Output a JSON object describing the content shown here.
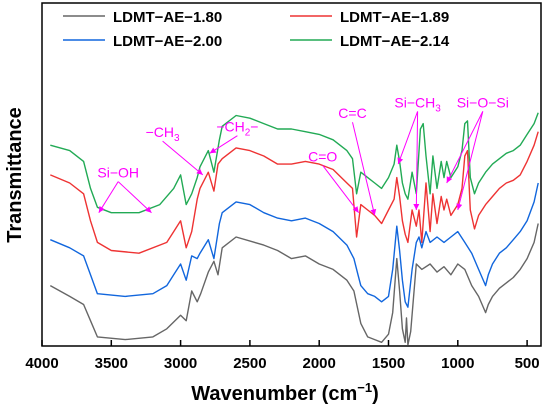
{
  "chart_data": {
    "type": "line",
    "xlabel": "Wavenumber (cm",
    "xlabel_sup": "−1",
    "xlabel_end": ")",
    "ylabel": "Transmittance",
    "xlim": [
      4000,
      400
    ],
    "x_reversed": true,
    "y_ticks_shown": false,
    "grid": false,
    "legend_placement": "top-center",
    "xticks": [
      {
        "value": 4000,
        "label": "4000"
      },
      {
        "value": 3500,
        "label": "3500"
      },
      {
        "value": 3000,
        "label": "3000"
      },
      {
        "value": 2500,
        "label": "2500"
      },
      {
        "value": 2000,
        "label": "2000"
      },
      {
        "value": 1500,
        "label": "1500"
      },
      {
        "value": 1000,
        "label": "1000"
      },
      {
        "value": 500,
        "label": "500"
      }
    ],
    "series": [
      {
        "name": "LDMT−AE−1.80",
        "color": "#666666",
        "points": [
          [
            3940,
            78
          ],
          [
            3800,
            82
          ],
          [
            3700,
            85
          ],
          [
            3650,
            91
          ],
          [
            3600,
            97
          ],
          [
            3400,
            98
          ],
          [
            3200,
            97
          ],
          [
            3100,
            94
          ],
          [
            3000,
            89
          ],
          [
            2960,
            91
          ],
          [
            2920,
            80
          ],
          [
            2880,
            84
          ],
          [
            2855,
            81
          ],
          [
            2800,
            73
          ],
          [
            2760,
            69
          ],
          [
            2730,
            74
          ],
          [
            2700,
            64
          ],
          [
            2600,
            60
          ],
          [
            2400,
            63
          ],
          [
            2300,
            65
          ],
          [
            2200,
            68
          ],
          [
            2100,
            67
          ],
          [
            2000,
            70
          ],
          [
            1900,
            72
          ],
          [
            1800,
            76
          ],
          [
            1750,
            80
          ],
          [
            1700,
            92
          ],
          [
            1650,
            97
          ],
          [
            1600,
            98
          ],
          [
            1550,
            99
          ],
          [
            1500,
            96
          ],
          [
            1470,
            88
          ],
          [
            1440,
            68
          ],
          [
            1420,
            80
          ],
          [
            1400,
            94
          ],
          [
            1380,
            99
          ],
          [
            1370,
            90
          ],
          [
            1360,
            100
          ],
          [
            1340,
            95
          ],
          [
            1300,
            70
          ],
          [
            1260,
            72
          ],
          [
            1200,
            70
          ],
          [
            1150,
            73
          ],
          [
            1100,
            71
          ],
          [
            1050,
            74
          ],
          [
            1000,
            70
          ],
          [
            950,
            72
          ],
          [
            900,
            78
          ],
          [
            850,
            82
          ],
          [
            800,
            88
          ],
          [
            780,
            85
          ],
          [
            750,
            82
          ],
          [
            700,
            79
          ],
          [
            650,
            77
          ],
          [
            600,
            75
          ],
          [
            550,
            72
          ],
          [
            500,
            68
          ],
          [
            450,
            62
          ],
          [
            420,
            55
          ]
        ]
      },
      {
        "name": "LDMT−AE−1.89",
        "color": "#ee3333",
        "points": [
          [
            3940,
            37
          ],
          [
            3800,
            40
          ],
          [
            3700,
            44
          ],
          [
            3650,
            54
          ],
          [
            3600,
            62
          ],
          [
            3500,
            65
          ],
          [
            3300,
            66
          ],
          [
            3100,
            62
          ],
          [
            3050,
            58
          ],
          [
            3000,
            54
          ],
          [
            2960,
            64
          ],
          [
            2920,
            58
          ],
          [
            2880,
            46
          ],
          [
            2860,
            42
          ],
          [
            2800,
            36
          ],
          [
            2760,
            43
          ],
          [
            2730,
            33
          ],
          [
            2700,
            31
          ],
          [
            2600,
            27
          ],
          [
            2500,
            28
          ],
          [
            2400,
            30
          ],
          [
            2300,
            33
          ],
          [
            2200,
            33
          ],
          [
            2100,
            32
          ],
          [
            2000,
            33
          ],
          [
            1900,
            35
          ],
          [
            1800,
            40
          ],
          [
            1760,
            42
          ],
          [
            1730,
            60
          ],
          [
            1700,
            48
          ],
          [
            1650,
            50
          ],
          [
            1600,
            52
          ],
          [
            1550,
            55
          ],
          [
            1500,
            50
          ],
          [
            1460,
            46
          ],
          [
            1440,
            38
          ],
          [
            1420,
            45
          ],
          [
            1400,
            54
          ],
          [
            1380,
            59
          ],
          [
            1360,
            62
          ],
          [
            1330,
            50
          ],
          [
            1300,
            56
          ],
          [
            1280,
            50
          ],
          [
            1260,
            62
          ],
          [
            1230,
            40
          ],
          [
            1200,
            58
          ],
          [
            1180,
            44
          ],
          [
            1150,
            55
          ],
          [
            1120,
            45
          ],
          [
            1100,
            50
          ],
          [
            1080,
            46
          ],
          [
            1050,
            52
          ],
          [
            1000,
            48
          ],
          [
            970,
            42
          ],
          [
            950,
            30
          ],
          [
            930,
            28
          ],
          [
            910,
            50
          ],
          [
            880,
            57
          ],
          [
            850,
            52
          ],
          [
            800,
            48
          ],
          [
            750,
            45
          ],
          [
            700,
            42
          ],
          [
            650,
            40
          ],
          [
            600,
            39
          ],
          [
            550,
            37
          ],
          [
            500,
            32
          ],
          [
            450,
            26
          ],
          [
            420,
            21
          ]
        ]
      },
      {
        "name": "LDMT−AE−2.00",
        "color": "#1166dd",
        "points": [
          [
            3940,
            61
          ],
          [
            3800,
            64
          ],
          [
            3700,
            67
          ],
          [
            3650,
            74
          ],
          [
            3600,
            81
          ],
          [
            3400,
            82
          ],
          [
            3200,
            81
          ],
          [
            3100,
            78
          ],
          [
            3050,
            74
          ],
          [
            3000,
            70
          ],
          [
            2960,
            76
          ],
          [
            2920,
            67
          ],
          [
            2880,
            68
          ],
          [
            2860,
            66
          ],
          [
            2800,
            61
          ],
          [
            2760,
            68
          ],
          [
            2720,
            55
          ],
          [
            2700,
            51
          ],
          [
            2600,
            47
          ],
          [
            2500,
            48
          ],
          [
            2400,
            51
          ],
          [
            2300,
            53
          ],
          [
            2200,
            54
          ],
          [
            2100,
            53
          ],
          [
            2000,
            55
          ],
          [
            1900,
            58
          ],
          [
            1800,
            63
          ],
          [
            1750,
            68
          ],
          [
            1720,
            74
          ],
          [
            1700,
            78
          ],
          [
            1650,
            81
          ],
          [
            1600,
            82
          ],
          [
            1550,
            84
          ],
          [
            1500,
            82
          ],
          [
            1470,
            72
          ],
          [
            1440,
            56
          ],
          [
            1420,
            65
          ],
          [
            1400,
            76
          ],
          [
            1380,
            84
          ],
          [
            1360,
            86
          ],
          [
            1330,
            72
          ],
          [
            1300,
            62
          ],
          [
            1280,
            60
          ],
          [
            1260,
            64
          ],
          [
            1230,
            58
          ],
          [
            1200,
            62
          ],
          [
            1150,
            60
          ],
          [
            1100,
            62
          ],
          [
            1050,
            60
          ],
          [
            1000,
            58
          ],
          [
            950,
            62
          ],
          [
            900,
            66
          ],
          [
            850,
            72
          ],
          [
            800,
            78
          ],
          [
            780,
            74
          ],
          [
            750,
            70
          ],
          [
            700,
            66
          ],
          [
            650,
            64
          ],
          [
            600,
            61
          ],
          [
            550,
            58
          ],
          [
            500,
            54
          ],
          [
            450,
            47
          ],
          [
            420,
            40
          ]
        ]
      },
      {
        "name": "LDMT−AE−2.14",
        "color": "#22aa55",
        "points": [
          [
            3940,
            26
          ],
          [
            3800,
            28
          ],
          [
            3700,
            32
          ],
          [
            3650,
            42
          ],
          [
            3600,
            49
          ],
          [
            3500,
            51
          ],
          [
            3300,
            51
          ],
          [
            3150,
            48
          ],
          [
            3050,
            42
          ],
          [
            3000,
            37
          ],
          [
            2960,
            48
          ],
          [
            2920,
            44
          ],
          [
            2880,
            38
          ],
          [
            2860,
            34
          ],
          [
            2800,
            28
          ],
          [
            2760,
            36
          ],
          [
            2720,
            24
          ],
          [
            2700,
            19
          ],
          [
            2600,
            15
          ],
          [
            2500,
            16
          ],
          [
            2400,
            18
          ],
          [
            2300,
            20
          ],
          [
            2200,
            20
          ],
          [
            2100,
            21
          ],
          [
            2000,
            22
          ],
          [
            1900,
            24
          ],
          [
            1800,
            28
          ],
          [
            1760,
            31
          ],
          [
            1730,
            44
          ],
          [
            1700,
            36
          ],
          [
            1650,
            38
          ],
          [
            1600,
            40
          ],
          [
            1550,
            42
          ],
          [
            1500,
            38
          ],
          [
            1460,
            33
          ],
          [
            1440,
            26
          ],
          [
            1420,
            32
          ],
          [
            1400,
            40
          ],
          [
            1380,
            44
          ],
          [
            1360,
            46
          ],
          [
            1330,
            36
          ],
          [
            1300,
            44
          ],
          [
            1270,
            20
          ],
          [
            1250,
            18
          ],
          [
            1230,
            30
          ],
          [
            1200,
            44
          ],
          [
            1180,
            30
          ],
          [
            1150,
            42
          ],
          [
            1120,
            32
          ],
          [
            1100,
            38
          ],
          [
            1080,
            32
          ],
          [
            1050,
            38
          ],
          [
            1000,
            34
          ],
          [
            970,
            28
          ],
          [
            950,
            18
          ],
          [
            930,
            17
          ],
          [
            910,
            38
          ],
          [
            880,
            44
          ],
          [
            850,
            40
          ],
          [
            800,
            36
          ],
          [
            750,
            33
          ],
          [
            700,
            31
          ],
          [
            650,
            29
          ],
          [
            600,
            28
          ],
          [
            550,
            26
          ],
          [
            500,
            22
          ],
          [
            450,
            18
          ],
          [
            420,
            14
          ]
        ]
      }
    ],
    "annotations": [
      {
        "label": "Si−OH",
        "x": 3450,
        "y": 38,
        "arrows": [
          [
            3590,
            51
          ],
          [
            3210,
            51
          ]
        ]
      },
      {
        "label": "−CH",
        "sub": "3",
        "x": 3130,
        "y": 23,
        "arrows": [
          [
            2840,
            37
          ]
        ]
      },
      {
        "label": "−CH",
        "sub": "2",
        "tail": "−",
        "x": 2590,
        "y": 21,
        "arrows": [
          [
            2790,
            29
          ]
        ]
      },
      {
        "label": "C=O",
        "x": 1975,
        "y": 32,
        "arrows": [
          [
            1715,
            51
          ]
        ]
      },
      {
        "label": "C=C",
        "x": 1760,
        "y": 16,
        "arrows": [
          [
            1600,
            52
          ]
        ]
      },
      {
        "label": "Si−CH",
        "sub": "3",
        "x": 1290,
        "y": 12,
        "arrows": [
          [
            1430,
            33
          ],
          [
            1300,
            50
          ]
        ]
      },
      {
        "label": "Si−O−Si",
        "x": 820,
        "y": 12,
        "arrows": [
          [
            1080,
            40
          ],
          [
            1000,
            50
          ]
        ]
      }
    ]
  }
}
